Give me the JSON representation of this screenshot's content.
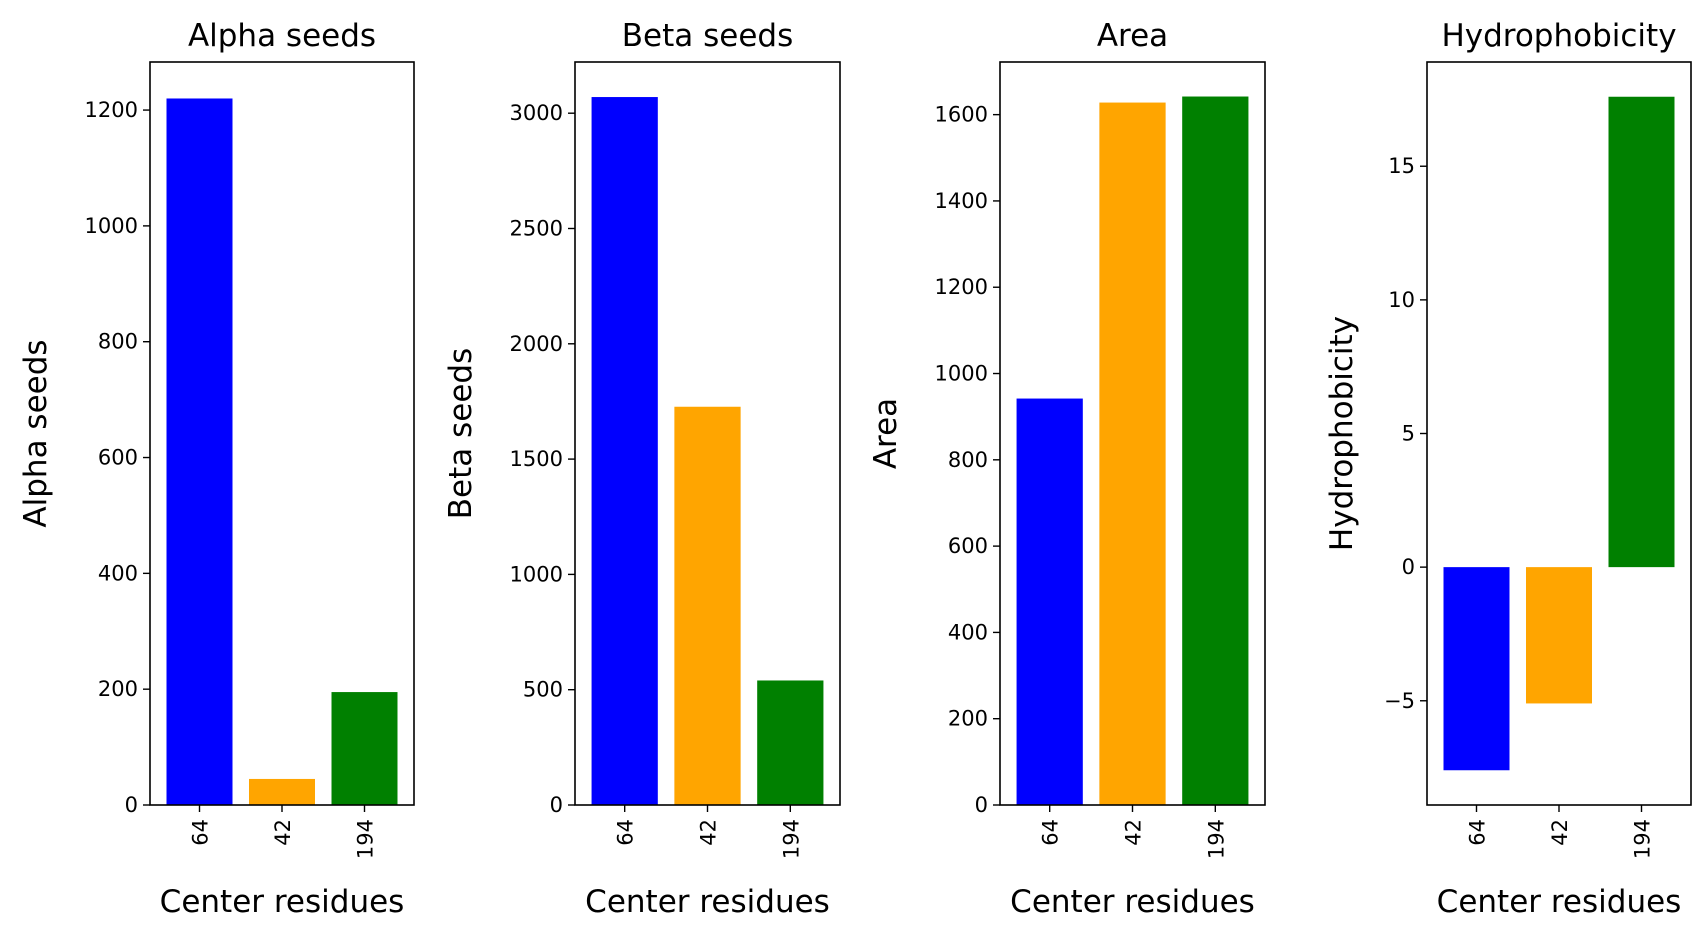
{
  "chart_data": [
    {
      "type": "bar",
      "title": "Alpha seeds",
      "xlabel": "Center residues",
      "ylabel": "Alpha seeds",
      "categories": [
        "64",
        "42",
        "194"
      ],
      "values": [
        1220,
        45,
        195
      ],
      "colors": [
        "#0000ff",
        "#ffa500",
        "#008000"
      ],
      "ylim": [
        0,
        1283
      ],
      "yticks": [
        0,
        200,
        400,
        600,
        800,
        1000,
        1200
      ],
      "ytick_labels": [
        "0",
        "200",
        "400",
        "600",
        "800",
        "1000",
        "1200"
      ]
    },
    {
      "type": "bar",
      "title": "Beta seeds",
      "xlabel": "Center residues",
      "ylabel": "Beta seeds",
      "categories": [
        "64",
        "42",
        "194"
      ],
      "values": [
        3070,
        1727,
        540
      ],
      "colors": [
        "#0000ff",
        "#ffa500",
        "#008000"
      ],
      "ylim": [
        0,
        3222
      ],
      "yticks": [
        0,
        500,
        1000,
        1500,
        2000,
        2500,
        3000
      ],
      "ytick_labels": [
        "0",
        "500",
        "1000",
        "1500",
        "2000",
        "2500",
        "3000"
      ]
    },
    {
      "type": "bar",
      "title": "Area",
      "xlabel": "Center residues",
      "ylabel": "Area",
      "categories": [
        "64",
        "42",
        "194"
      ],
      "values": [
        942,
        1628,
        1642
      ],
      "colors": [
        "#0000ff",
        "#ffa500",
        "#008000"
      ],
      "ylim": [
        0,
        1722
      ],
      "yticks": [
        0,
        200,
        400,
        600,
        800,
        1000,
        1200,
        1400,
        1600
      ],
      "ytick_labels": [
        "0",
        "200",
        "400",
        "600",
        "800",
        "1000",
        "1200",
        "1400",
        "1600"
      ]
    },
    {
      "type": "bar",
      "title": "Hydrophobicity",
      "xlabel": "Center residues",
      "ylabel": "Hydrophobicity",
      "categories": [
        "64",
        "42",
        "194"
      ],
      "values": [
        -7.6,
        -5.1,
        17.6
      ],
      "colors": [
        "#0000ff",
        "#ffa500",
        "#008000"
      ],
      "ylim": [
        -8.9,
        18.9
      ],
      "yticks": [
        -5,
        0,
        5,
        10,
        15
      ],
      "ytick_labels": [
        "−5",
        "0",
        "5",
        "10",
        "15"
      ]
    }
  ]
}
